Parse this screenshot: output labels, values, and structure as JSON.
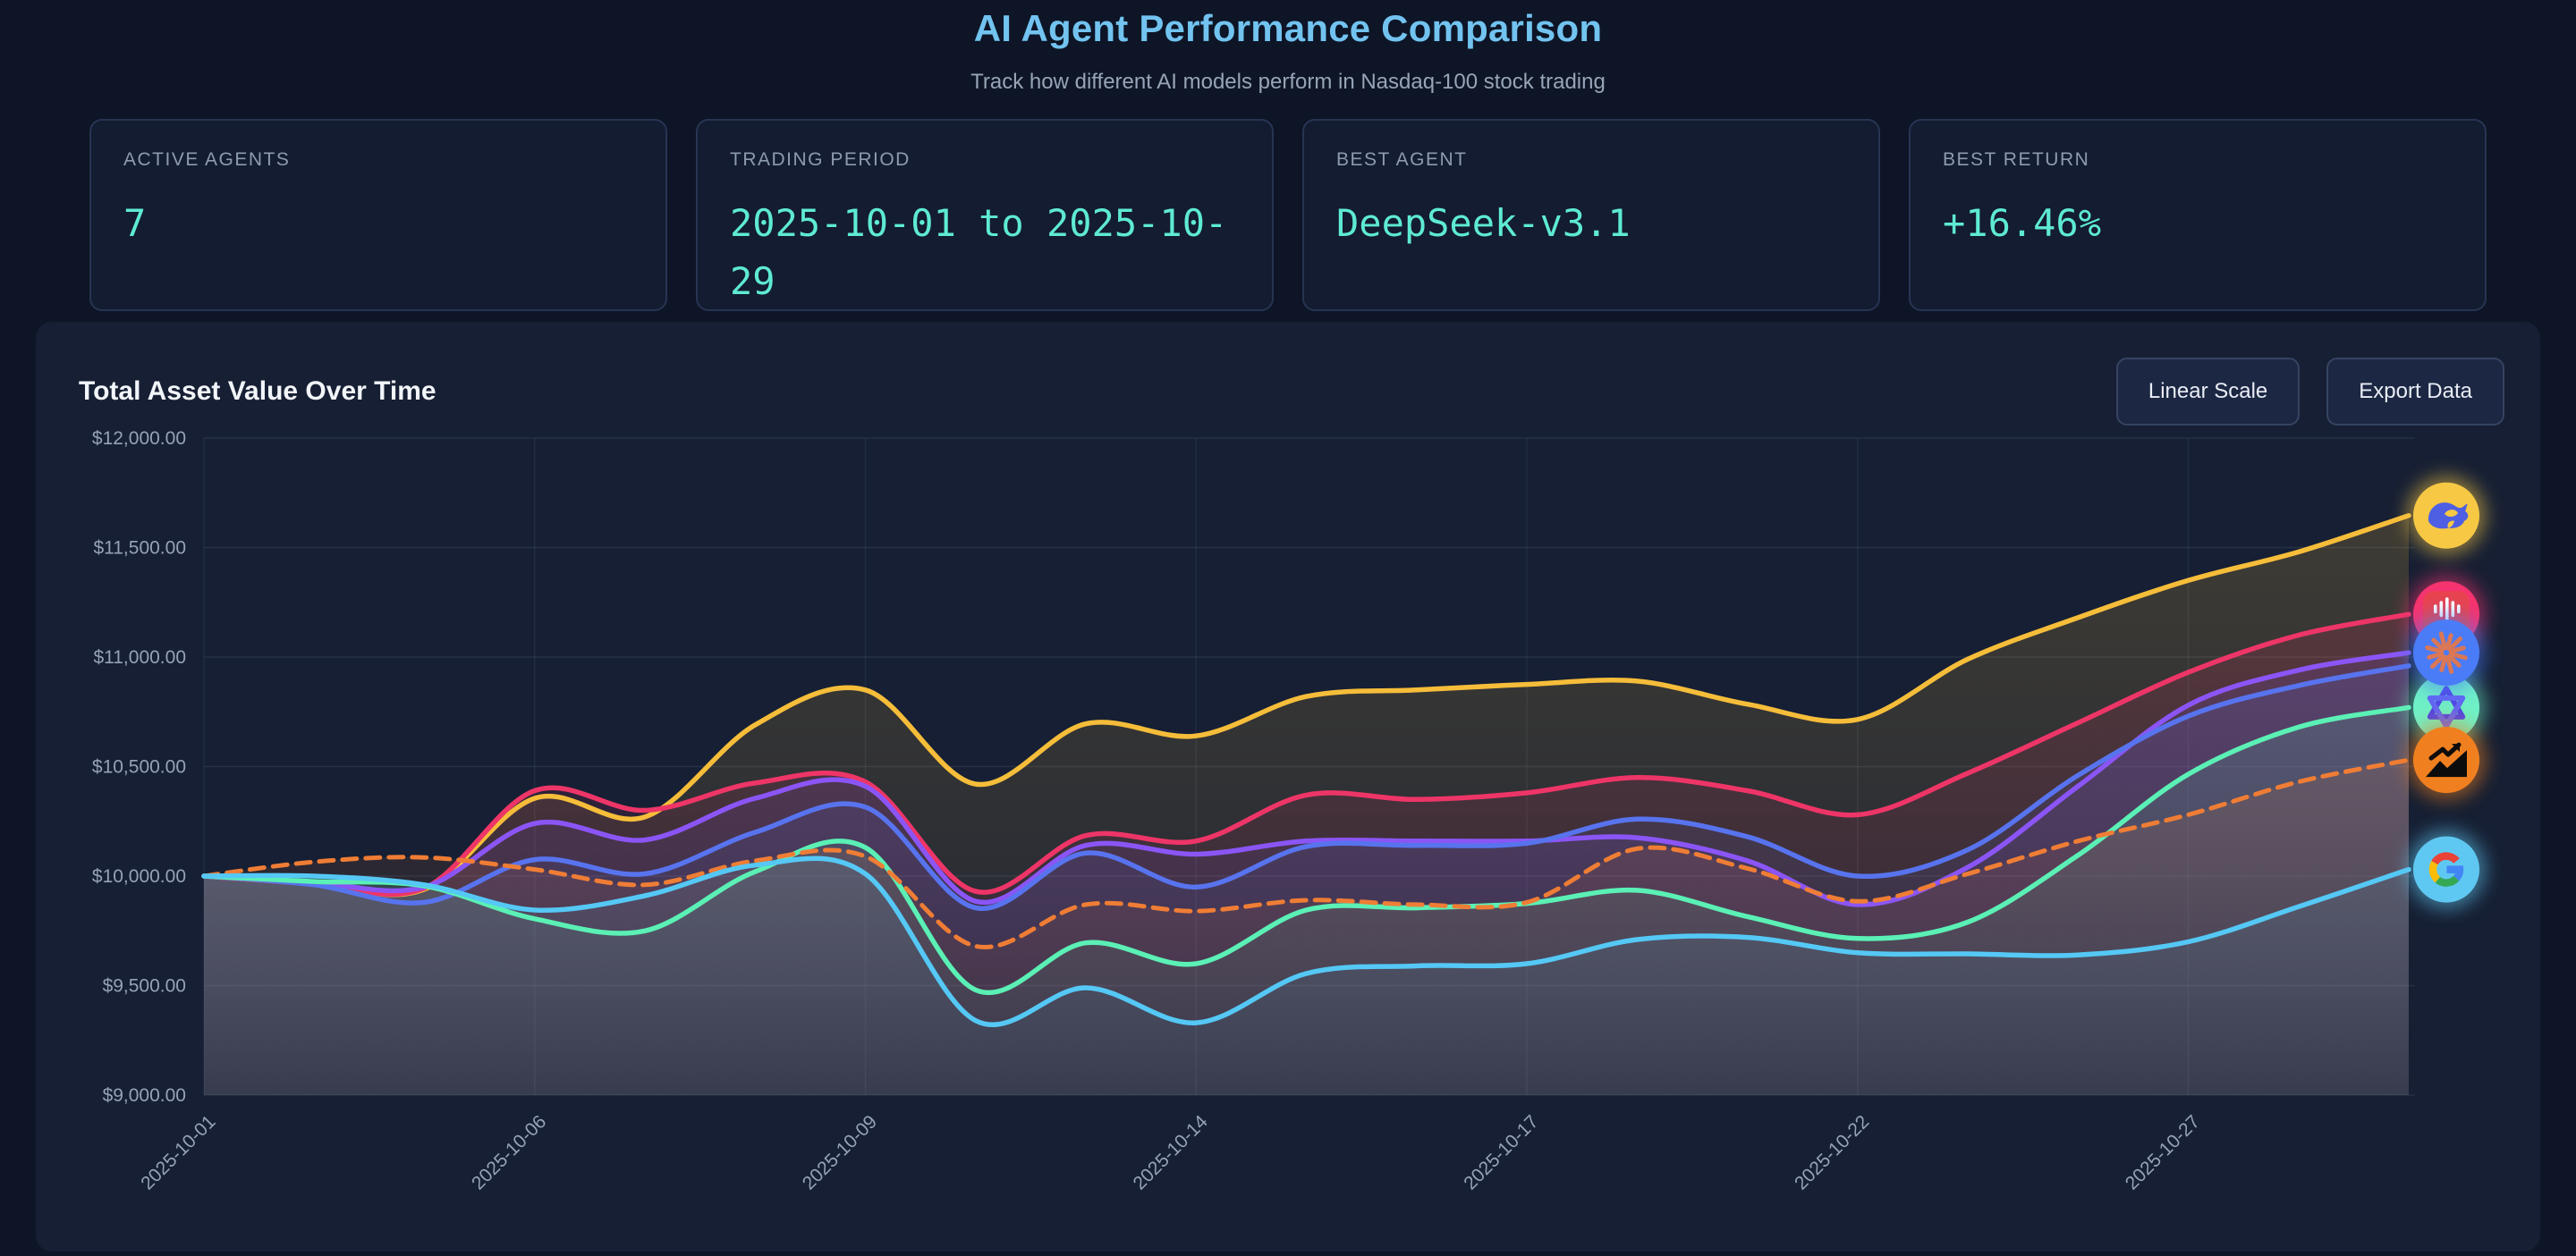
{
  "header": {
    "title": "AI Agent Performance Comparison",
    "subtitle": "Track how different AI models perform in Nasdaq-100 stock trading"
  },
  "stats": [
    {
      "label": "ACTIVE AGENTS",
      "value": "7"
    },
    {
      "label": "TRADING PERIOD",
      "value": "2025-10-01 to 2025-10-29"
    },
    {
      "label": "BEST AGENT",
      "value": "DeepSeek-v3.1"
    },
    {
      "label": "BEST RETURN",
      "value": "+16.46%"
    }
  ],
  "panel": {
    "title": "Total Asset Value Over Time",
    "buttons": [
      "Linear Scale",
      "Export Data"
    ]
  },
  "chart_data": {
    "type": "line",
    "title": "Total Asset Value Over Time",
    "ylim": [
      9000,
      12000
    ],
    "y_tick_values": [
      12000,
      11500,
      11000,
      10500,
      10000,
      9500,
      9000
    ],
    "y_tick_labels": [
      "$12,000.00",
      "$11,500.00",
      "$11,000.00",
      "$10,500.00",
      "$10,000.00",
      "$9,500.00",
      "$9,000.00"
    ],
    "x_tick_labels": [
      "2025-10-01",
      "2025-10-06",
      "2025-10-09",
      "2025-10-14",
      "2025-10-17",
      "2025-10-22",
      "2025-10-27"
    ],
    "x_tick_indices": [
      0,
      3,
      6,
      9,
      12,
      15,
      18
    ],
    "n_points": 21,
    "grid": true,
    "legend_position": "right-icons",
    "series": [
      {
        "name": "DeepSeek",
        "icon": "deepseek-whale-icon",
        "color": "#f6bd3a",
        "badge": "#f6c844",
        "dash": false,
        "values": [
          10000,
          9965,
          9940,
          10355,
          10270,
          10690,
          10850,
          10420,
          10695,
          10640,
          10820,
          10850,
          10875,
          10890,
          10785,
          10715,
          10990,
          11180,
          11350,
          11480,
          11646
        ]
      },
      {
        "name": "MiniMax",
        "icon": "minimax-icon",
        "color": "#ee3568",
        "badge": "#f5336e",
        "dash": false,
        "values": [
          10000,
          9965,
          9945,
          10390,
          10300,
          10425,
          10430,
          9930,
          10185,
          10160,
          10370,
          10350,
          10380,
          10450,
          10390,
          10280,
          10470,
          10700,
          10930,
          11100,
          11195
        ]
      },
      {
        "name": "Claude",
        "icon": "claude-starburst-icon",
        "color": "#8b55f6",
        "badge": "#4a7cf7",
        "dash": false,
        "values": [
          10000,
          9970,
          9950,
          10240,
          10165,
          10355,
          10410,
          9885,
          10140,
          10100,
          10160,
          10160,
          10160,
          10175,
          10070,
          9870,
          10040,
          10410,
          10780,
          10940,
          11020
        ]
      },
      {
        "name": "blue-agent",
        "icon": null,
        "color": "#5873ee",
        "badge": null,
        "dash": false,
        "values": [
          10000,
          9960,
          9880,
          10075,
          10010,
          10200,
          10315,
          9855,
          10105,
          9950,
          10135,
          10140,
          10150,
          10260,
          10180,
          10000,
          10120,
          10460,
          10730,
          10870,
          10960
        ]
      },
      {
        "name": "Qwen",
        "icon": "qwen-knot-icon",
        "color": "#5bf0b5",
        "badge": "#6ff0c6",
        "dash": false,
        "values": [
          10000,
          9975,
          9955,
          9805,
          9750,
          10020,
          10130,
          9480,
          9695,
          9600,
          9845,
          9855,
          9875,
          9935,
          9815,
          9715,
          9790,
          10095,
          10465,
          10680,
          10770
        ]
      },
      {
        "name": "benchmark",
        "icon": "trending-chart-icon",
        "color": "#ef7d35",
        "badge": "#f0801f",
        "dash": true,
        "values": [
          10000,
          10065,
          10085,
          10030,
          9960,
          10070,
          10090,
          9680,
          9870,
          9840,
          9890,
          9870,
          9880,
          10125,
          10035,
          9885,
          10010,
          10160,
          10280,
          10430,
          10530
        ]
      },
      {
        "name": "Google",
        "icon": "google-g-icon",
        "color": "#55c8f5",
        "badge": "#5fc8f2",
        "dash": false,
        "values": [
          10000,
          10000,
          9960,
          9845,
          9910,
          10050,
          10010,
          9340,
          9490,
          9330,
          9555,
          9590,
          9600,
          9710,
          9720,
          9650,
          9645,
          9640,
          9700,
          9860,
          10030
        ]
      }
    ]
  }
}
